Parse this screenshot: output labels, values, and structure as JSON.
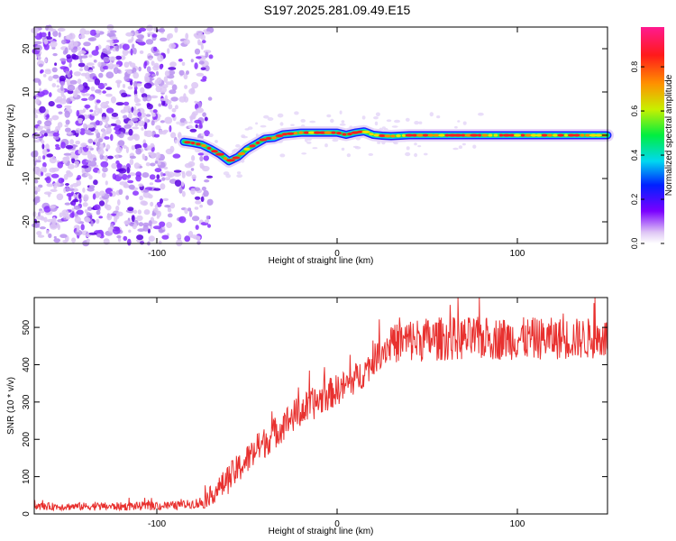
{
  "title": "S197.2025.281.09.49.E15",
  "chart_data": [
    {
      "type": "heatmap",
      "xlabel": "Height of straight line (km)",
      "ylabel": "Frequency (Hz)",
      "xlim": [
        -168,
        150
      ],
      "ylim": [
        -25,
        25
      ],
      "xticks": [
        -100,
        0,
        100
      ],
      "yticks": [
        -20,
        -10,
        0,
        10,
        20
      ],
      "noise_region_x": [
        -168,
        -75
      ],
      "trace": {
        "x": [
          -85,
          -80,
          -75,
          -70,
          -65,
          -60,
          -55,
          -50,
          -45,
          -40,
          -35,
          -30,
          -25,
          -20,
          -15,
          -10,
          -5,
          0,
          5,
          10,
          15,
          20,
          25,
          30,
          40,
          60,
          80,
          100,
          120,
          150
        ],
        "y": [
          -1.5,
          -1.8,
          -2.2,
          -3.2,
          -4.4,
          -6.0,
          -5.0,
          -3.2,
          -2.0,
          -0.8,
          -0.6,
          0.2,
          0.4,
          0.6,
          0.6,
          0.6,
          0.6,
          0.6,
          0.1,
          0.6,
          0.9,
          0.1,
          -0.1,
          -0.2,
          0.0,
          0.0,
          0.0,
          0.0,
          0.0,
          0.0
        ]
      }
    },
    {
      "type": "line",
      "xlabel": "Height of straight line (km)",
      "ylabel": "SNR (10 * v/v)",
      "xlim": [
        -168,
        150
      ],
      "ylim": [
        0,
        580
      ],
      "xticks": [
        -100,
        0,
        100
      ],
      "yticks": [
        0,
        100,
        200,
        300,
        400,
        500
      ],
      "series_color": "#e8312f",
      "trend": {
        "x": [
          -168,
          -120,
          -90,
          -75,
          -65,
          -55,
          -45,
          -35,
          -25,
          -15,
          -5,
          5,
          15,
          20,
          25,
          30,
          40,
          60,
          80,
          100,
          120,
          150
        ],
        "y": [
          20,
          20,
          22,
          30,
          70,
          120,
          170,
          215,
          260,
          290,
          320,
          345,
          380,
          410,
          440,
          455,
          465,
          470,
          470,
          470,
          470,
          470
        ]
      },
      "noise_amplitude": [
        [
          -168,
          10
        ],
        [
          -80,
          12
        ],
        [
          -60,
          40
        ],
        [
          -20,
          45
        ],
        [
          20,
          40
        ],
        [
          40,
          60
        ],
        [
          150,
          55
        ]
      ]
    },
    {
      "type": "colorbar",
      "label": "Normalized spectral amplitude",
      "ticks": [
        "0.0",
        "0.2",
        "0.4",
        "0.6",
        "0.8"
      ],
      "tick_values": [
        0.0,
        0.2,
        0.4,
        0.6,
        0.8
      ],
      "range": [
        0,
        0.98
      ]
    }
  ]
}
